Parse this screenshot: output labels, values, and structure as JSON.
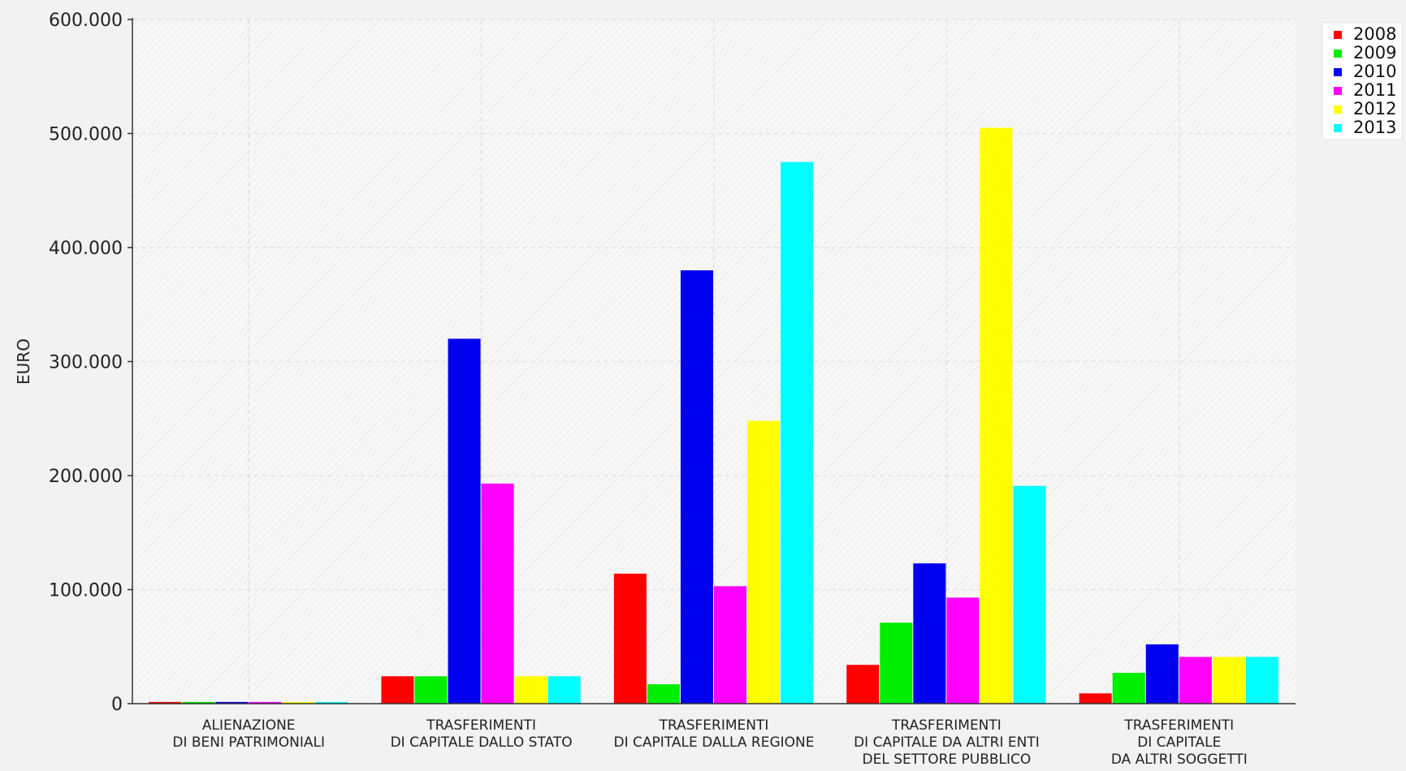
{
  "chart_data": {
    "type": "bar",
    "title": "",
    "xlabel": "",
    "ylabel": "EURO",
    "ylim": [
      0,
      600000
    ],
    "yticks": [
      {
        "value": 0,
        "label": "0"
      },
      {
        "value": 100000,
        "label": "100.000"
      },
      {
        "value": 200000,
        "label": "200.000"
      },
      {
        "value": 300000,
        "label": "300.000"
      },
      {
        "value": 400000,
        "label": "400.000"
      },
      {
        "value": 500000,
        "label": "500.000"
      },
      {
        "value": 600000,
        "label": "600.000"
      }
    ],
    "grid": true,
    "legend_position": "top-right",
    "categories": [
      [
        "ALIENAZIONE",
        "DI BENI PATRIMONIALI"
      ],
      [
        "TRASFERIMENTI",
        "DI CAPITALE DALLO STATO"
      ],
      [
        "TRASFERIMENTI",
        "DI CAPITALE DALLA REGIONE"
      ],
      [
        "TRASFERIMENTI",
        "DI CAPITALE DA ALTRI ENTI",
        "DEL SETTORE PUBBLICO"
      ],
      [
        "TRASFERIMENTI",
        "DI CAPITALE",
        "DA ALTRI SOGGETTI"
      ]
    ],
    "series": [
      {
        "name": "2008",
        "color": "#ff0000",
        "values": [
          1500,
          24000,
          114000,
          34000,
          9000
        ]
      },
      {
        "name": "2009",
        "color": "#00ee00",
        "values": [
          1500,
          24000,
          17000,
          71000,
          27000
        ]
      },
      {
        "name": "2010",
        "color": "#0000ee",
        "values": [
          1500,
          320000,
          380000,
          123000,
          52000
        ]
      },
      {
        "name": "2011",
        "color": "#ff00ff",
        "values": [
          1500,
          193000,
          103000,
          93000,
          41000
        ]
      },
      {
        "name": "2012",
        "color": "#ffff00",
        "values": [
          1500,
          24000,
          248000,
          505000,
          41000
        ]
      },
      {
        "name": "2013",
        "color": "#00ffff",
        "values": [
          1500,
          24000,
          475000,
          191000,
          41000
        ]
      }
    ]
  }
}
